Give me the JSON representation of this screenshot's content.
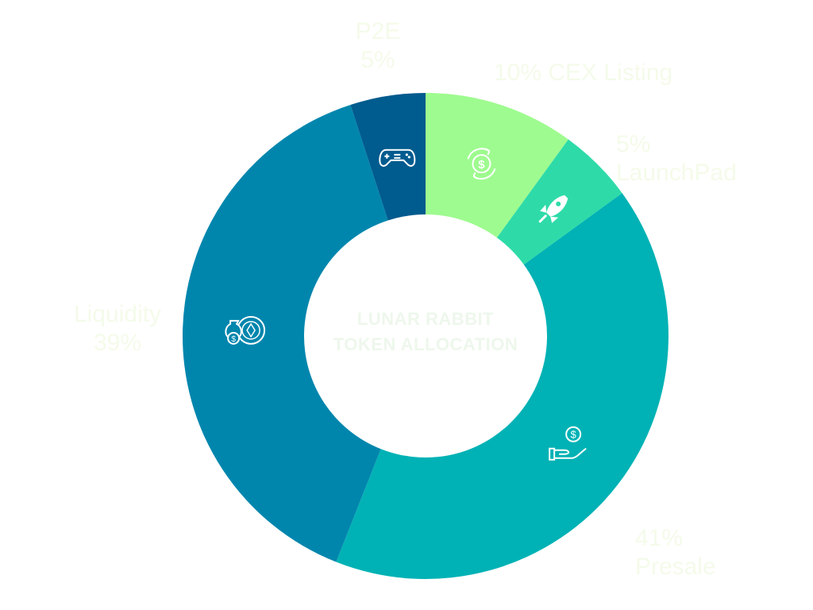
{
  "chart_data": {
    "type": "pie",
    "title_lines": [
      "LUNAR RABBIT",
      "TOKEN ALLOCATION"
    ],
    "slices": [
      {
        "label": "CEX Listing",
        "value": 10,
        "text_lines": [
          "10% CEX Listing"
        ],
        "color": "#9efb8f",
        "icon": "currency-exchange-icon"
      },
      {
        "label": "LaunchPad",
        "value": 5,
        "text_lines": [
          "5%",
          "LaunchPad"
        ],
        "color": "#2edba8",
        "icon": "rocket-icon"
      },
      {
        "label": "Presale",
        "value": 41,
        "text_lines": [
          "41%",
          "Presale"
        ],
        "color": "#00b2b5",
        "icon": "hand-dollar-icon"
      },
      {
        "label": "Liquidity",
        "value": 39,
        "text_lines": [
          "Liquidity",
          "39%"
        ],
        "color": "#0086ad",
        "icon": "money-bag-coins-icon"
      },
      {
        "label": "P2E",
        "value": 5,
        "text_lines": [
          "P2E",
          "5%"
        ],
        "color": "#005b8e",
        "icon": "gamepad-icon"
      }
    ]
  }
}
